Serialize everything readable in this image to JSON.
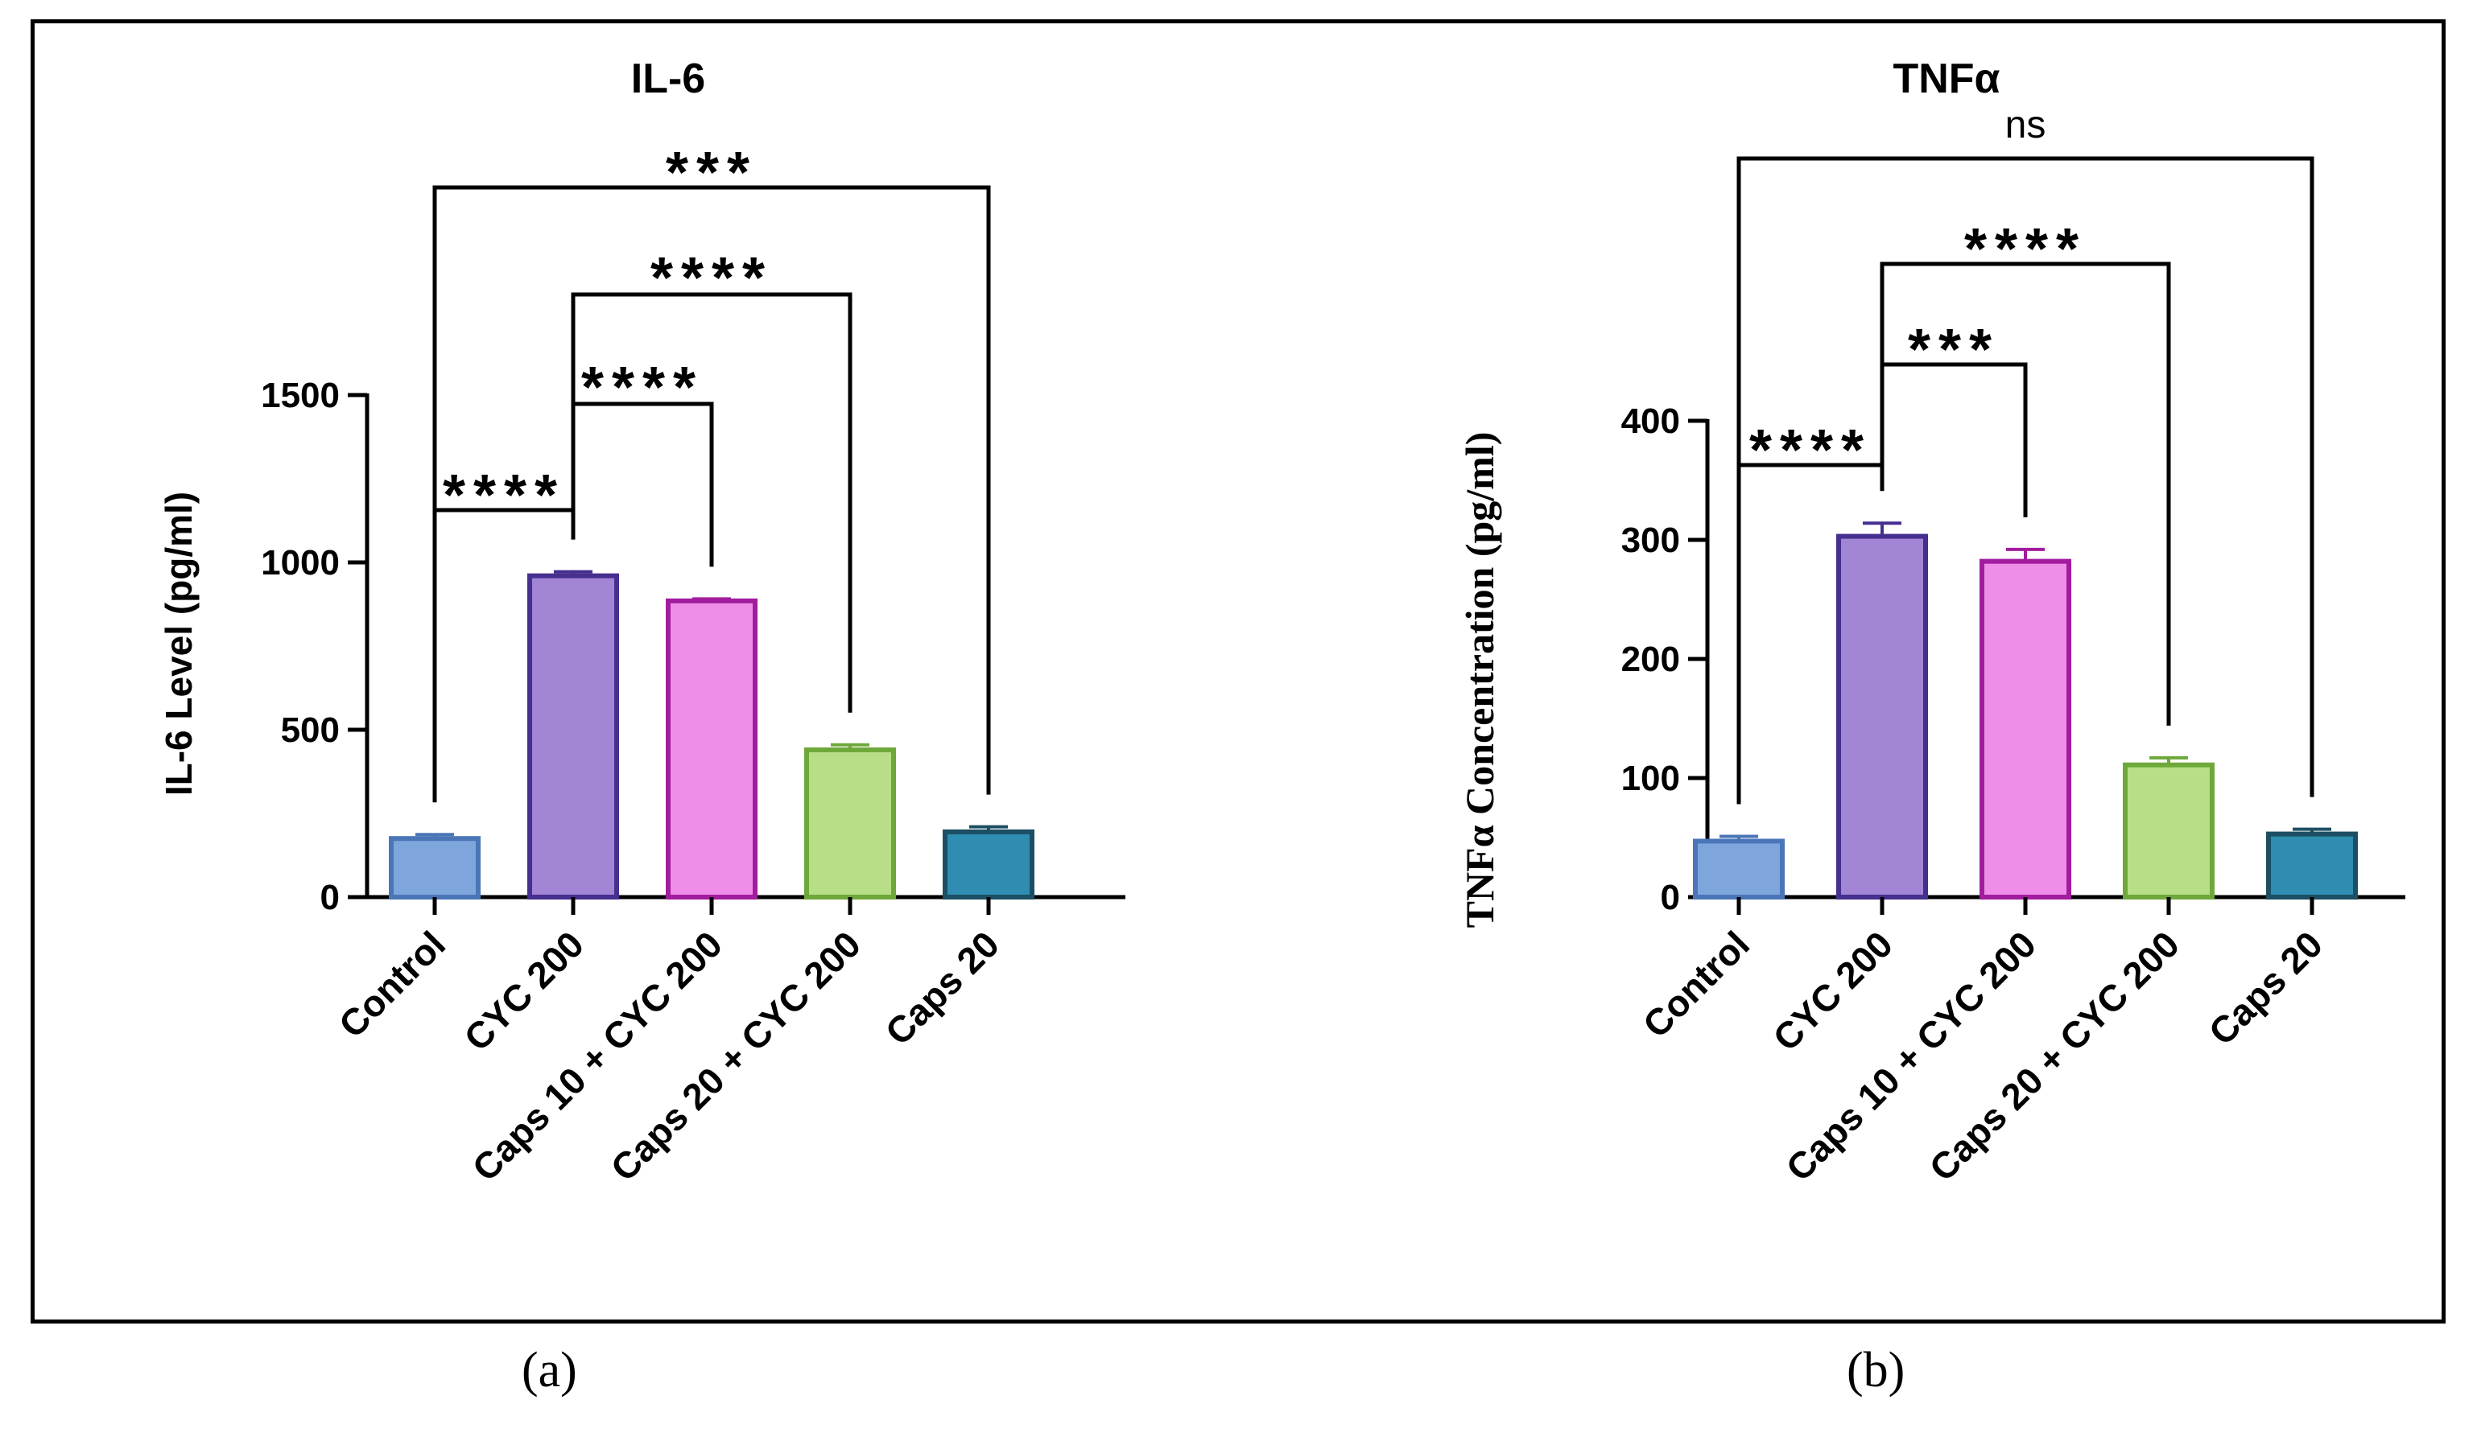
{
  "chart_data": [
    {
      "type": "bar",
      "panel": "(a)",
      "title": "IL-6",
      "ylabel": "IL-6 Level (pg/ml)",
      "xlabel": "",
      "categories": [
        "Control",
        "CYC 200",
        "Caps 10 + CYC 200",
        "Caps 20 + CYC 200",
        "Caps 20"
      ],
      "values": [
        175,
        960,
        885,
        440,
        195
      ],
      "errors": [
        12,
        12,
        6,
        15,
        15
      ],
      "ylim": [
        0,
        1500
      ],
      "yticks": [
        0,
        500,
        1000,
        1500
      ],
      "colors": {
        "fill": [
          "#7ea6dc",
          "#a385d6",
          "#ee8ee8",
          "#b8df87",
          "#2e8db0"
        ],
        "stroke": [
          "#4a76b8",
          "#452f8f",
          "#a21c9e",
          "#6ea83a",
          "#1c4f63"
        ]
      },
      "comparisons": [
        {
          "from": 0,
          "to": 1,
          "label": "****"
        },
        {
          "from": 1,
          "to": 2,
          "label": "****"
        },
        {
          "from": 1,
          "to": 3,
          "label": "****"
        },
        {
          "from": 0,
          "to": 4,
          "label": "***"
        }
      ],
      "grid": false
    },
    {
      "type": "bar",
      "panel": "(b)",
      "title": "TNFα",
      "ylabel": "TNFα Concentration (pg/ml)",
      "xlabel": "",
      "categories": [
        "Control",
        "CYC 200",
        "Caps 10 + CYC 200",
        "Caps 20 + CYC 200",
        "Caps 20"
      ],
      "values": [
        47,
        303,
        282,
        111,
        53
      ],
      "errors": [
        4,
        11,
        10,
        6,
        4
      ],
      "ylim": [
        0,
        400
      ],
      "yticks": [
        0,
        100,
        200,
        300,
        400
      ],
      "colors": {
        "fill": [
          "#7ea6dc",
          "#a385d6",
          "#ee8ee8",
          "#b8df87",
          "#2e8db0"
        ],
        "stroke": [
          "#4a76b8",
          "#452f8f",
          "#a21c9e",
          "#6ea83a",
          "#1c4f63"
        ]
      },
      "comparisons": [
        {
          "from": 0,
          "to": 1,
          "label": "****"
        },
        {
          "from": 1,
          "to": 2,
          "label": "***"
        },
        {
          "from": 1,
          "to": 3,
          "label": "****"
        },
        {
          "from": 0,
          "to": 4,
          "label": "ns"
        }
      ],
      "grid": false
    }
  ]
}
